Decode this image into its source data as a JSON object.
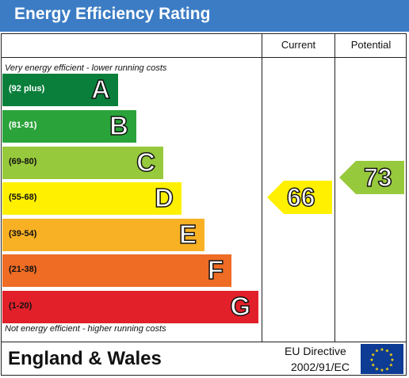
{
  "title": "Energy Efficiency Rating",
  "columns": {
    "current": "Current",
    "potential": "Potential"
  },
  "caption_top": "Very energy efficient - lower running costs",
  "caption_bottom": "Not energy efficient - higher running costs",
  "bands": [
    {
      "range": "(92 plus)",
      "letter": "A",
      "color": "#0a7f3b"
    },
    {
      "range": "(81-91)",
      "letter": "B",
      "color": "#2ba33b"
    },
    {
      "range": "(69-80)",
      "letter": "C",
      "color": "#97c93c"
    },
    {
      "range": "(55-68)",
      "letter": "D",
      "color": "#fff000"
    },
    {
      "range": "(39-54)",
      "letter": "E",
      "color": "#f8b124"
    },
    {
      "range": "(21-38)",
      "letter": "F",
      "color": "#ee6c24"
    },
    {
      "range": "(1-20)",
      "letter": "G",
      "color": "#e2202a"
    }
  ],
  "current_rating": {
    "value": "66",
    "color": "#fff000"
  },
  "potential_rating": {
    "value": "73",
    "color": "#97c93c"
  },
  "footer": {
    "region": "England & Wales",
    "directive_line1": "EU Directive",
    "directive_line2": "2002/91/EC",
    "flag_icon": "eu-flag-icon"
  }
}
